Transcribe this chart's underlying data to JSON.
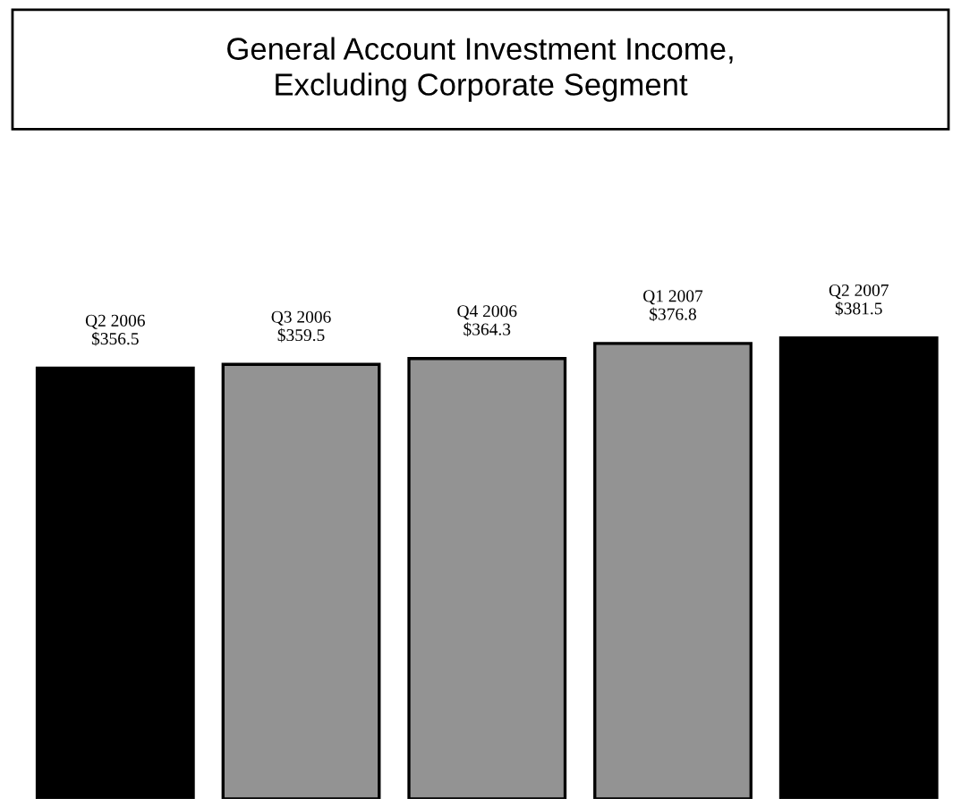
{
  "chart_data": {
    "type": "bar",
    "title": "General Account Investment Income,\nExcluding Corporate Segment",
    "categories": [
      "Q2 2006",
      "Q3 2006",
      "Q4 2006",
      "Q1 2007",
      "Q2 2007"
    ],
    "values": [
      356.5,
      359.5,
      364.3,
      376.8,
      381.5
    ],
    "colors": [
      "#000000",
      "#939393",
      "#939393",
      "#939393",
      "#000000"
    ],
    "value_labels": [
      "$356.5",
      "$359.5",
      "$364.3",
      "$376.8",
      "$381.5"
    ],
    "data_labels": true
  }
}
